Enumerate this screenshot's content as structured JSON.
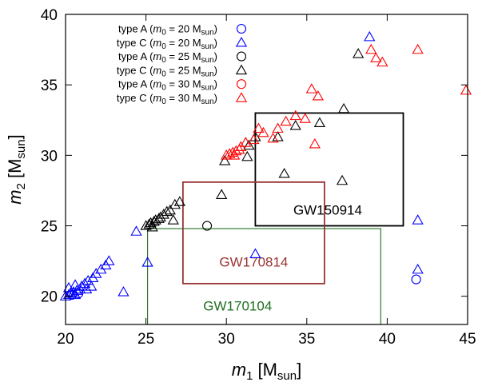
{
  "chart_data": {
    "type": "scatter",
    "title": "",
    "xlabel": {
      "symbol": "m",
      "sub": "1",
      "unit": "[M",
      "unit_sub": "sun",
      "unit_end": "]"
    },
    "ylabel": {
      "symbol": "m",
      "sub": "2",
      "unit": "[M",
      "unit_sub": "sun",
      "unit_end": "]"
    },
    "xlim": [
      20,
      45
    ],
    "ylim": [
      18,
      40
    ],
    "xticks": [
      "20",
      "25",
      "30",
      "35",
      "40",
      "45"
    ],
    "yticks": [
      "20",
      "25",
      "30",
      "35",
      "40"
    ],
    "xtick_values": [
      20,
      25,
      30,
      35,
      40,
      45
    ],
    "ytick_values": [
      20,
      25,
      30,
      35,
      40
    ],
    "legend_position": "top-left",
    "series": [
      {
        "name": "type A (m0 = 20 Msun)",
        "label_type": "type A",
        "label_mass": "20",
        "marker": "circle",
        "color": "#0000ff",
        "points": [
          [
            20.4,
            20.1
          ],
          [
            20.8,
            20.2
          ],
          [
            41.8,
            21.2
          ]
        ]
      },
      {
        "name": "type C (m0 = 20 Msun)",
        "label_type": "type C",
        "label_mass": "20",
        "marker": "triangle",
        "color": "#0000ff",
        "points": [
          [
            20.0,
            20.0
          ],
          [
            20.2,
            20.1
          ],
          [
            20.3,
            20.2
          ],
          [
            20.5,
            20.3
          ],
          [
            20.6,
            20.1
          ],
          [
            20.7,
            20.4
          ],
          [
            20.9,
            20.5
          ],
          [
            21.0,
            20.7
          ],
          [
            21.2,
            20.9
          ],
          [
            21.4,
            21.1
          ],
          [
            21.7,
            21.3
          ],
          [
            21.9,
            21.6
          ],
          [
            22.2,
            21.9
          ],
          [
            22.5,
            22.2
          ],
          [
            22.7,
            22.5
          ],
          [
            20.2,
            20.6
          ],
          [
            20.6,
            20.8
          ],
          [
            21.3,
            20.5
          ],
          [
            21.6,
            20.7
          ],
          [
            23.6,
            20.3
          ],
          [
            24.4,
            24.6
          ],
          [
            25.1,
            22.4
          ],
          [
            31.8,
            23.0
          ],
          [
            41.9,
            25.4
          ],
          [
            41.9,
            21.9
          ],
          [
            38.9,
            38.4
          ]
        ]
      },
      {
        "name": "type A (m0 = 25 Msun)",
        "label_type": "type A",
        "label_mass": "25",
        "marker": "circle",
        "color": "#000000",
        "points": [
          [
            28.8,
            25.0
          ]
        ]
      },
      {
        "name": "type C (m0 = 25 Msun)",
        "label_type": "type C",
        "label_mass": "25",
        "marker": "triangle",
        "color": "#000000",
        "points": [
          [
            25.0,
            25.0
          ],
          [
            25.2,
            25.1
          ],
          [
            25.3,
            25.2
          ],
          [
            25.5,
            25.3
          ],
          [
            25.6,
            25.4
          ],
          [
            25.8,
            25.5
          ],
          [
            25.9,
            25.6
          ],
          [
            26.1,
            25.8
          ],
          [
            26.3,
            26.0
          ],
          [
            26.5,
            26.1
          ],
          [
            26.8,
            26.5
          ],
          [
            27.1,
            26.7
          ],
          [
            26.7,
            25.4
          ],
          [
            25.4,
            24.9
          ],
          [
            29.7,
            27.2
          ],
          [
            29.9,
            29.6
          ],
          [
            31.3,
            29.9
          ],
          [
            31.4,
            30.7
          ],
          [
            31.8,
            31.3
          ],
          [
            33.2,
            31.3
          ],
          [
            33.6,
            28.7
          ],
          [
            34.3,
            32.1
          ],
          [
            35.8,
            32.3
          ],
          [
            37.2,
            28.2
          ],
          [
            37.3,
            33.3
          ],
          [
            38.2,
            37.2
          ]
        ]
      },
      {
        "name": "type A (m0 = 30 Msun)",
        "label_type": "type A",
        "label_mass": "30",
        "marker": "circle",
        "color": "#ff0000",
        "points": []
      },
      {
        "name": "type C (m0 = 30 Msun)",
        "label_type": "type C",
        "label_mass": "30",
        "marker": "triangle",
        "color": "#ff0000",
        "points": [
          [
            30.0,
            30.0
          ],
          [
            30.2,
            30.1
          ],
          [
            30.4,
            30.2
          ],
          [
            30.6,
            30.3
          ],
          [
            30.8,
            30.4
          ],
          [
            30.5,
            30.0
          ],
          [
            30.9,
            30.6
          ],
          [
            31.2,
            30.9
          ],
          [
            31.7,
            31.1
          ],
          [
            32.0,
            31.9
          ],
          [
            32.3,
            31.6
          ],
          [
            32.9,
            31.2
          ],
          [
            33.2,
            31.9
          ],
          [
            33.7,
            32.4
          ],
          [
            34.3,
            32.8
          ],
          [
            34.9,
            32.6
          ],
          [
            35.3,
            34.7
          ],
          [
            35.7,
            34.2
          ],
          [
            35.5,
            30.8
          ],
          [
            39.0,
            37.5
          ],
          [
            39.3,
            36.9
          ],
          [
            39.7,
            36.6
          ],
          [
            41.9,
            37.5
          ],
          [
            44.9,
            34.6
          ]
        ]
      }
    ],
    "boxes": [
      {
        "name": "GW150914",
        "label": "GW150914",
        "color": "#000000",
        "x": [
          31.8,
          41.0
        ],
        "y": [
          25.0,
          33.0
        ],
        "label_at": [
          36.3,
          25.8
        ]
      },
      {
        "name": "GW170814",
        "label": "GW170814",
        "color": "#993333",
        "x": [
          27.3,
          36.1
        ],
        "y": [
          20.9,
          28.1
        ],
        "label_at": [
          31.7,
          22.1
        ]
      },
      {
        "name": "GW170104",
        "label": "GW170104",
        "color": "#1f6f1f",
        "x": [
          25.1,
          39.6
        ],
        "y": [
          18.0,
          24.8
        ],
        "label_at": [
          30.7,
          19.0
        ]
      }
    ]
  }
}
